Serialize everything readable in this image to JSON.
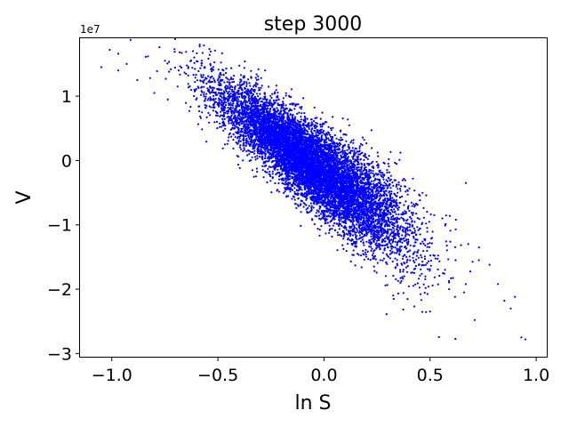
{
  "chart_data": {
    "type": "scatter",
    "title": "step 3000",
    "xlabel": "ln S",
    "ylabel": "V",
    "y_offset_label": "1e7",
    "xlim": [
      -1.15,
      1.05
    ],
    "ylim": [
      -3.05,
      1.9
    ],
    "x_ticks": [
      -1.0,
      -0.5,
      0.0,
      0.5,
      1.0
    ],
    "x_tick_labels": [
      "−1.0",
      "−0.5",
      "0.0",
      "0.5",
      "1.0"
    ],
    "y_ticks": [
      -3,
      -2,
      -1,
      0,
      1
    ],
    "y_tick_labels": [
      "−3",
      "−2",
      "−1",
      "0",
      "1"
    ],
    "y_scale_multiplier": 10000000,
    "grid": false,
    "marker_color": "#0000ff",
    "approx_point_count": 10000,
    "trend": {
      "slope": -2.4,
      "intercept": -0.2
    },
    "points": [
      {
        "x": -1.05,
        "y": 1.45
      },
      {
        "x": -1.01,
        "y": 1.72
      },
      {
        "x": -0.97,
        "y": 1.66
      },
      {
        "x": -0.97,
        "y": 1.4
      },
      {
        "x": -0.93,
        "y": 1.5
      },
      {
        "x": -0.88,
        "y": 1.25
      },
      {
        "x": -0.83,
        "y": 1.62
      },
      {
        "x": -0.82,
        "y": 1.28
      },
      {
        "x": -0.8,
        "y": 1.05
      },
      {
        "x": -0.75,
        "y": 1.55
      },
      {
        "x": -0.73,
        "y": 1.38
      },
      {
        "x": -0.69,
        "y": 1.15
      },
      {
        "x": -0.64,
        "y": 1.32
      },
      {
        "x": 0.59,
        "y": -2.0
      },
      {
        "x": 0.62,
        "y": -1.55
      },
      {
        "x": 0.66,
        "y": -2.05
      },
      {
        "x": 0.68,
        "y": -1.3
      },
      {
        "x": 0.71,
        "y": -2.48
      },
      {
        "x": 0.73,
        "y": -1.55
      },
      {
        "x": 0.78,
        "y": -1.62
      },
      {
        "x": 0.82,
        "y": -1.92
      },
      {
        "x": 0.85,
        "y": -2.18
      },
      {
        "x": 0.88,
        "y": -2.3
      },
      {
        "x": 0.9,
        "y": -2.12
      },
      {
        "x": 0.93,
        "y": -2.75
      },
      {
        "x": 0.95,
        "y": -2.78
      }
    ]
  }
}
